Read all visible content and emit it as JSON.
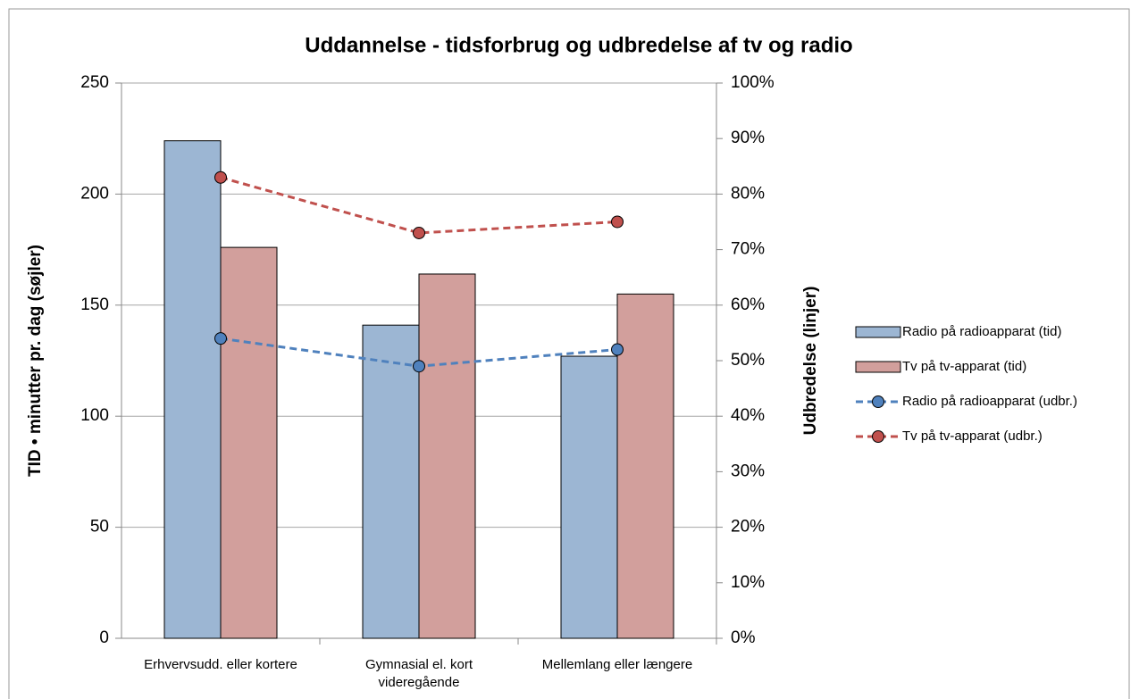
{
  "chart_data": {
    "type": "combo",
    "title": "Uddannelse - tidsforbrug og udbredelse af tv og radio",
    "y_label": "TID • minutter pr. dag (søjler)",
    "y2_label": "Udbredelse (linjer)",
    "categories": [
      "Erhvervsudd. eller kortere",
      "Gymnasial el. kort videregående",
      "Mellemlang eller længere"
    ],
    "series": [
      {
        "name": "Radio på radioapparat (tid)",
        "type": "bar",
        "color": "#9cb6d3",
        "values": [
          224,
          141,
          127
        ]
      },
      {
        "name": "Tv på tv-apparat (tid)",
        "type": "bar",
        "color": "#d29f9c",
        "values": [
          176,
          164,
          155
        ]
      },
      {
        "name": "Radio på radioapparat (udbr.)",
        "type": "line",
        "axis": "y2",
        "color": "#4f81bd",
        "values": [
          54,
          49,
          52
        ]
      },
      {
        "name": "Tv på tv-apparat (udbr.)",
        "type": "line",
        "axis": "y2",
        "color": "#c0504d",
        "values": [
          83,
          73,
          75
        ]
      }
    ],
    "ylim": [
      0,
      250
    ],
    "yticks": [
      0,
      50,
      100,
      150,
      200,
      250
    ],
    "y2lim": [
      0,
      100
    ],
    "y2ticks": [
      {
        "value": 0,
        "label": "0%"
      },
      {
        "value": 10,
        "label": "10%"
      },
      {
        "value": 20,
        "label": "20%"
      },
      {
        "value": 30,
        "label": "30%"
      },
      {
        "value": 40,
        "label": "40%"
      },
      {
        "value": 50,
        "label": "50%"
      },
      {
        "value": 60,
        "label": "60%"
      },
      {
        "value": 70,
        "label": "70%"
      },
      {
        "value": 80,
        "label": "80%"
      },
      {
        "value": 90,
        "label": "90%"
      },
      {
        "value": 100,
        "label": "100%"
      }
    ],
    "grid": true,
    "legend": "right"
  }
}
